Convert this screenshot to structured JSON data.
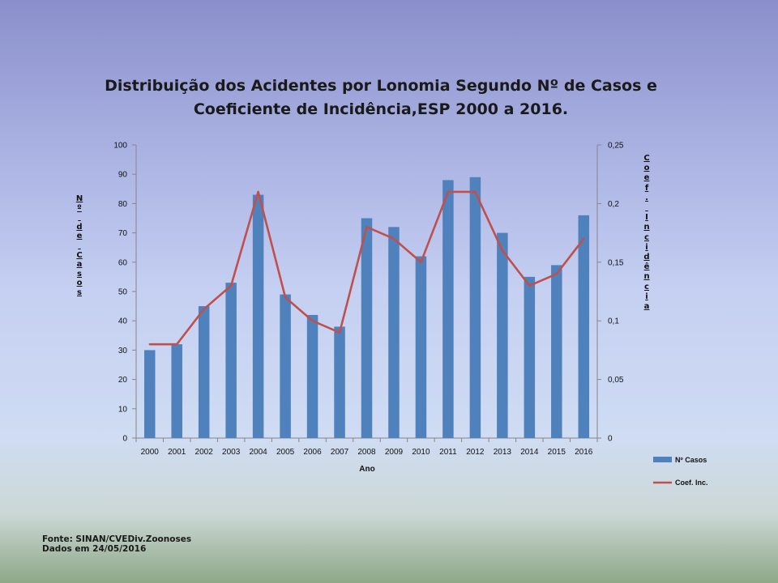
{
  "chart_data": {
    "type": "bar+line",
    "title_line1": "Distribuição dos Acidentes por Lonomia Segundo Nº de Casos e",
    "title_line2": "Coeficiente de Incidência,ESP 2000 a 2016.",
    "xlabel": "Ano",
    "ylabel": "Nº de Casos",
    "y2label": "Coef. Incidência",
    "categories": [
      "2000",
      "2001",
      "2002",
      "2003",
      "2004",
      "2005",
      "2006",
      "2007",
      "2008",
      "2009",
      "2010",
      "2011",
      "2012",
      "2013",
      "2014",
      "2015",
      "2016"
    ],
    "series": [
      {
        "name": "Nº Casos",
        "type": "bar",
        "axis": "left",
        "color": "#4f81bd",
        "values": [
          30,
          32,
          45,
          53,
          83,
          49,
          42,
          38,
          75,
          72,
          62,
          88,
          89,
          70,
          55,
          59,
          76
        ]
      },
      {
        "name": "Coef. Inc.",
        "type": "line",
        "axis": "right",
        "color": "#c0504d",
        "values": [
          0.08,
          0.08,
          0.11,
          0.13,
          0.21,
          0.12,
          0.1,
          0.09,
          0.18,
          0.17,
          0.15,
          0.21,
          0.21,
          0.16,
          0.13,
          0.14,
          0.17
        ]
      }
    ],
    "ylim": [
      0,
      100
    ],
    "yticks": [
      "0",
      "10",
      "20",
      "30",
      "40",
      "50",
      "60",
      "70",
      "80",
      "90",
      "100"
    ],
    "y2lim": [
      0,
      0.25
    ],
    "y2ticks": [
      "0",
      "0,05",
      "0,1",
      "0,15",
      "0,2",
      "0,25"
    ],
    "legend_position": "right-bottom",
    "grid": false
  },
  "source": {
    "line1": "Fonte: SINAN/CVEDiv.Zoonoses",
    "line2": "Dados em 24/05/2016"
  }
}
